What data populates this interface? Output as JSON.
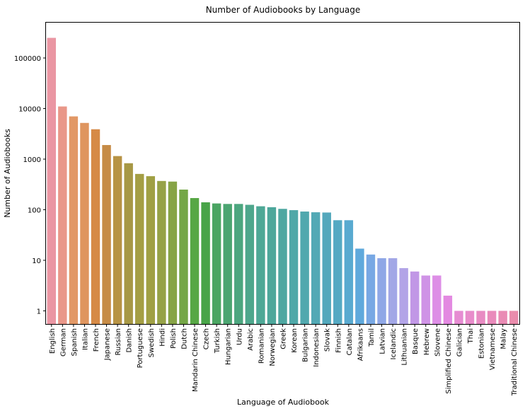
{
  "chart_data": {
    "type": "bar",
    "title": "Number of Audiobooks by Language",
    "xlabel": "Language of Audiobook",
    "ylabel": "Number of Audiobooks",
    "yscale": "log",
    "ylim": [
      0.55,
      500000
    ],
    "yticks": [
      1,
      10,
      100,
      1000,
      10000,
      100000
    ],
    "ytick_labels": [
      "1",
      "10",
      "100",
      "1000",
      "10000",
      "100000"
    ],
    "grid": false,
    "categories": [
      "English",
      "German",
      "Spanish",
      "Italian",
      "French",
      "Japanese",
      "Russian",
      "Danish",
      "Portuguese",
      "Swedish",
      "Hindi",
      "Polish",
      "Dutch",
      "Mandarin Chinese",
      "Czech",
      "Turkish",
      "Hungarian",
      "Urdu",
      "Arabic",
      "Romanian",
      "Norwegian",
      "Greek",
      "Korean",
      "Bulgarian",
      "Indonesian",
      "Slovak",
      "Finnish",
      "Catalan",
      "Afrikaans",
      "Tamil",
      "Latvian",
      "Icelandic",
      "Lithuanian",
      "Basque",
      "Hebrew",
      "Slovene",
      "Simplified Chinese",
      "Galician",
      "Thai",
      "Estonian",
      "Vietnamese",
      "Malay",
      "Traditional Chinese"
    ],
    "values": [
      250000,
      11000,
      7000,
      5200,
      3900,
      1900,
      1150,
      830,
      510,
      460,
      370,
      360,
      250,
      170,
      140,
      133,
      130,
      130,
      125,
      117,
      112,
      104,
      98,
      92,
      89,
      88,
      62,
      62,
      17,
      13,
      11,
      11,
      7,
      6,
      5,
      5,
      2,
      1,
      1,
      1,
      1,
      1,
      1
    ],
    "colors": [
      "#ea96a3",
      "#e99789",
      "#e29866",
      "#df955f",
      "#d68a46",
      "#c68b46",
      "#b79345",
      "#a79845",
      "#a49e44",
      "#a0a044",
      "#96a247",
      "#87a446",
      "#74a646",
      "#57a745",
      "#48a448",
      "#4aa562",
      "#4ba571",
      "#4ca67f",
      "#4ea78c",
      "#4ea896",
      "#4da79b",
      "#4ea7a1",
      "#4fa8a8",
      "#51a8ae",
      "#52a9b5",
      "#53a8bc",
      "#55a9c3",
      "#59aad0",
      "#5fa9dc",
      "#78a8e4",
      "#8fa7e6",
      "#a2a7e6",
      "#b2a4e7",
      "#c197e6",
      "#cf93e6",
      "#dd8ee6",
      "#e389e1",
      "#e68cd2",
      "#e88ccb",
      "#e88bc3",
      "#e98abb",
      "#e98bb4",
      "#ea8cac"
    ]
  }
}
